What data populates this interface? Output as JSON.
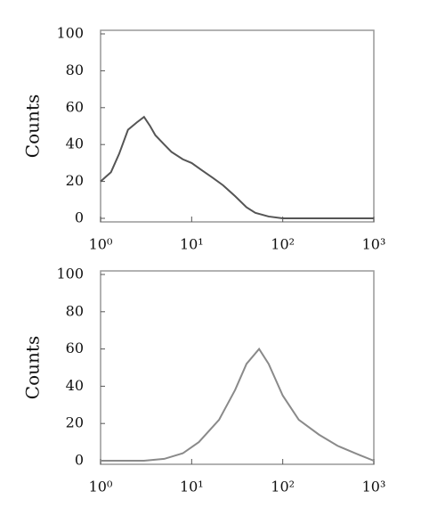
{
  "chart_data": [
    {
      "type": "line",
      "y_label": "Counts",
      "xscale": "log",
      "color": "#555555",
      "x": [
        1,
        1.3,
        1.6,
        2,
        2.5,
        3,
        3.5,
        4,
        5,
        6,
        8,
        10,
        13,
        17,
        22,
        30,
        40,
        50,
        70,
        100,
        200,
        500,
        1000
      ],
      "values": [
        20,
        25,
        35,
        48,
        52,
        55,
        50,
        45,
        40,
        36,
        32,
        30,
        26,
        22,
        18,
        12,
        6,
        3,
        1,
        0,
        0,
        0,
        0
      ],
      "xlim": [
        1,
        1000
      ],
      "ylim": [
        0,
        100
      ],
      "xticks": [
        {
          "value": 1,
          "label": "10⁰"
        },
        {
          "value": 10,
          "label": "10¹"
        },
        {
          "value": 100,
          "label": "10²"
        },
        {
          "value": 1000,
          "label": "10³"
        }
      ],
      "yticks": [
        0,
        20,
        40,
        60,
        80,
        100
      ]
    },
    {
      "type": "line",
      "y_label": "Counts",
      "xscale": "log",
      "color": "#8a8a8a",
      "x": [
        1,
        3,
        5,
        8,
        12,
        20,
        30,
        40,
        55,
        70,
        100,
        150,
        250,
        400,
        700,
        1000
      ],
      "values": [
        0,
        0,
        1,
        4,
        10,
        22,
        38,
        52,
        60,
        52,
        35,
        22,
        14,
        8,
        3,
        0
      ],
      "xlim": [
        1,
        1000
      ],
      "ylim": [
        0,
        100
      ],
      "xticks": [
        {
          "value": 1,
          "label": "10⁰"
        },
        {
          "value": 10,
          "label": "10¹"
        },
        {
          "value": 100,
          "label": "10²"
        },
        {
          "value": 1000,
          "label": "10³"
        }
      ],
      "yticks": [
        0,
        20,
        40,
        60,
        80,
        100
      ]
    }
  ]
}
